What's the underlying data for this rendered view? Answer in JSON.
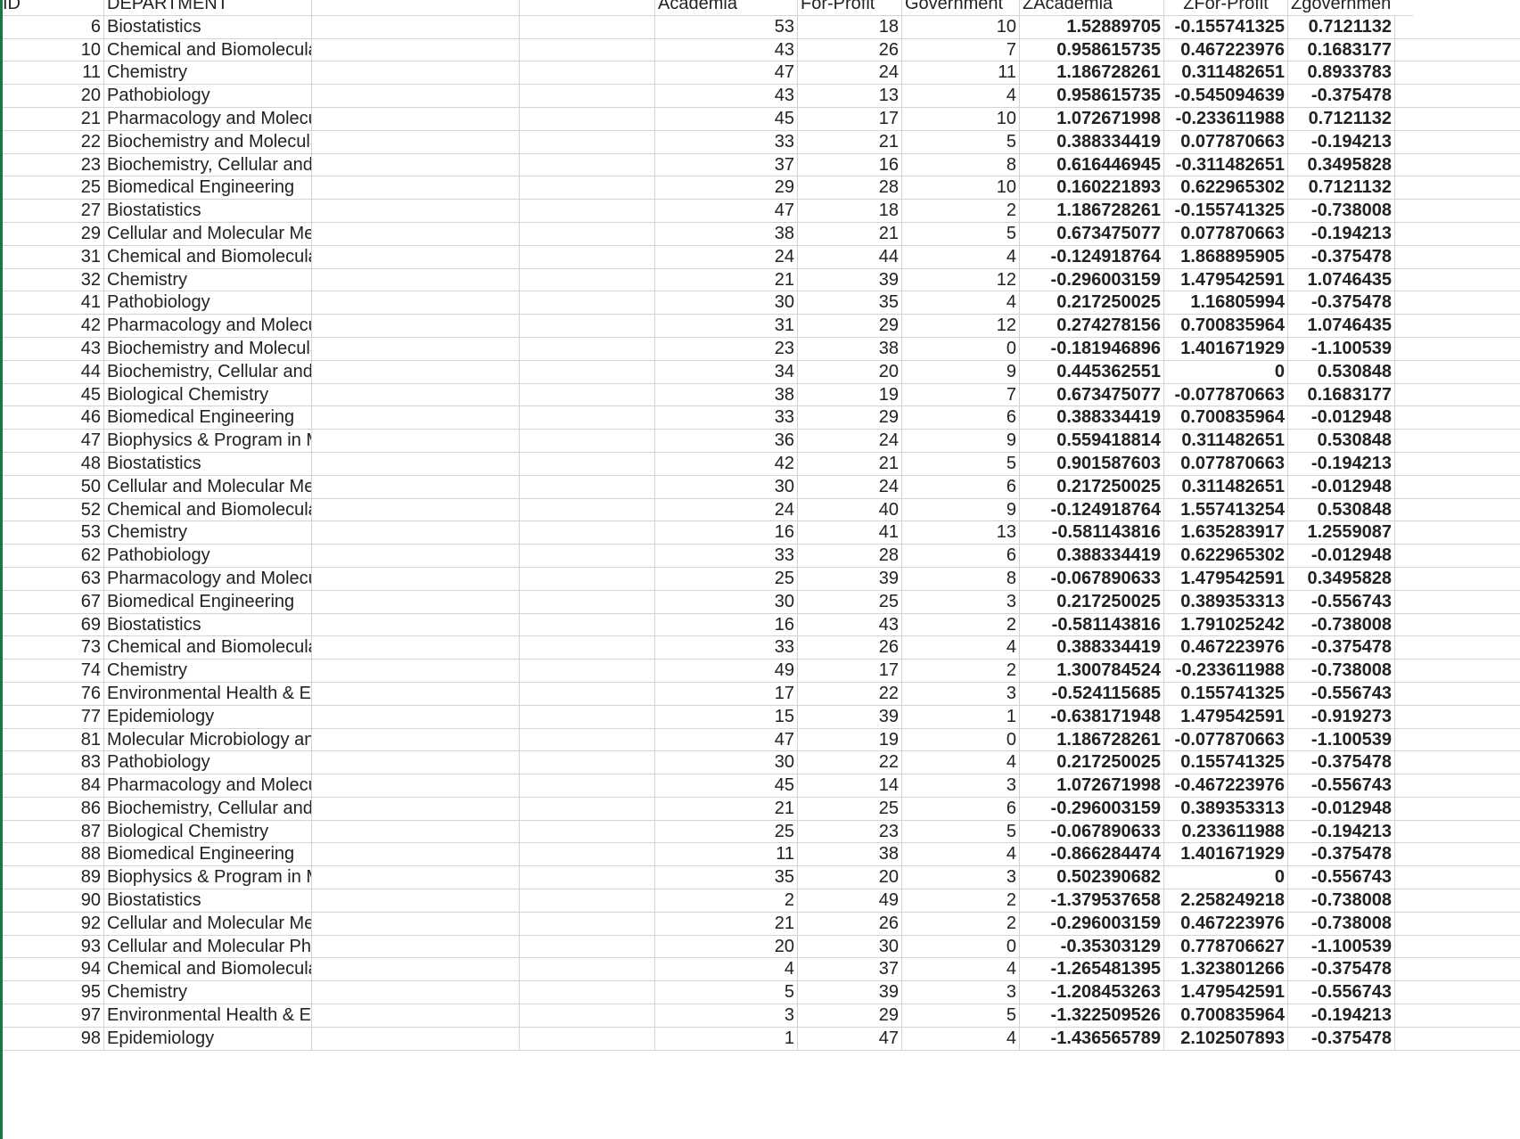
{
  "headers": {
    "id": "ID",
    "department": "DEPARTMENT",
    "academia": "Academia",
    "for_profit": "For-Profit",
    "government": "Government",
    "z_academia": "ZAcademia",
    "z_for_profit": "ZFor-Profit",
    "z_government": "Zgovernmen"
  },
  "rows": [
    {
      "id": "6",
      "dept": "Biostatistics",
      "ac": "53",
      "fp": "18",
      "gov": "10",
      "za": "1.52889705",
      "zf": "-0.155741325",
      "zg": "0.7121132"
    },
    {
      "id": "10",
      "dept": "Chemical and Biomolecular Engineering",
      "ac": "43",
      "fp": "26",
      "gov": "7",
      "za": "0.958615735",
      "zf": "0.467223976",
      "zg": "0.1683177"
    },
    {
      "id": "11",
      "dept": "Chemistry",
      "ac": "47",
      "fp": "24",
      "gov": "11",
      "za": "1.186728261",
      "zf": "0.311482651",
      "zg": "0.8933783"
    },
    {
      "id": "20",
      "dept": "Pathobiology",
      "ac": "43",
      "fp": "13",
      "gov": "4",
      "za": "0.958615735",
      "zf": "-0.545094639",
      "zg": "-0.375478"
    },
    {
      "id": "21",
      "dept": "Pharmacology and Molecular Sciences",
      "ac": "45",
      "fp": "17",
      "gov": "10",
      "za": "1.072671998",
      "zf": "-0.233611988",
      "zg": "0.7121132"
    },
    {
      "id": "22",
      "dept": "Biochemistry and Molecular Biology",
      "ac": "33",
      "fp": "21",
      "gov": "5",
      "za": "0.388334419",
      "zf": "0.077870663",
      "zg": "-0.194213"
    },
    {
      "id": "23",
      "dept": "Biochemistry, Cellular and Molecular Biology",
      "ac": "37",
      "fp": "16",
      "gov": "8",
      "za": "0.616446945",
      "zf": "-0.311482651",
      "zg": "0.3495828"
    },
    {
      "id": "25",
      "dept": "Biomedical Engineering",
      "ac": "29",
      "fp": "28",
      "gov": "10",
      "za": "0.160221893",
      "zf": "0.622965302",
      "zg": "0.7121132"
    },
    {
      "id": "27",
      "dept": "Biostatistics",
      "ac": "47",
      "fp": "18",
      "gov": "2",
      "za": "1.186728261",
      "zf": "-0.155741325",
      "zg": "-0.738008"
    },
    {
      "id": "29",
      "dept": "Cellular and Molecular Medicine",
      "ac": "38",
      "fp": "21",
      "gov": "5",
      "za": "0.673475077",
      "zf": "0.077870663",
      "zg": "-0.194213"
    },
    {
      "id": "31",
      "dept": "Chemical and Biomolecular Engineering",
      "ac": "24",
      "fp": "44",
      "gov": "4",
      "za": "-0.124918764",
      "zf": "1.868895905",
      "zg": "-0.375478"
    },
    {
      "id": "32",
      "dept": "Chemistry",
      "ac": "21",
      "fp": "39",
      "gov": "12",
      "za": "-0.296003159",
      "zf": "1.479542591",
      "zg": "1.0746435"
    },
    {
      "id": "41",
      "dept": "Pathobiology",
      "ac": "30",
      "fp": "35",
      "gov": "4",
      "za": "0.217250025",
      "zf": "1.16805994",
      "zg": "-0.375478"
    },
    {
      "id": "42",
      "dept": "Pharmacology and Molecular Sciences",
      "ac": "31",
      "fp": "29",
      "gov": "12",
      "za": "0.274278156",
      "zf": "0.700835964",
      "zg": "1.0746435"
    },
    {
      "id": "43",
      "dept": "Biochemistry and Molecular Biology",
      "ac": "23",
      "fp": "38",
      "gov": "0",
      "za": "-0.181946896",
      "zf": "1.401671929",
      "zg": "-1.100539"
    },
    {
      "id": "44",
      "dept": "Biochemistry, Cellular and Molecular Biology",
      "ac": "34",
      "fp": "20",
      "gov": "9",
      "za": "0.445362551",
      "zf": "0",
      "zg": "0.530848"
    },
    {
      "id": "45",
      "dept": "Biological Chemistry",
      "ac": "38",
      "fp": "19",
      "gov": "7",
      "za": "0.673475077",
      "zf": "-0.077870663",
      "zg": "0.1683177"
    },
    {
      "id": "46",
      "dept": "Biomedical Engineering",
      "ac": "33",
      "fp": "29",
      "gov": "6",
      "za": "0.388334419",
      "zf": "0.700835964",
      "zg": "-0.012948"
    },
    {
      "id": "47",
      "dept": "Biophysics & Program in Molecular Biophysics",
      "ac": "36",
      "fp": "24",
      "gov": "9",
      "za": "0.559418814",
      "zf": "0.311482651",
      "zg": "0.530848"
    },
    {
      "id": "48",
      "dept": "Biostatistics",
      "ac": "42",
      "fp": "21",
      "gov": "5",
      "za": "0.901587603",
      "zf": "0.077870663",
      "zg": "-0.194213"
    },
    {
      "id": "50",
      "dept": "Cellular and Molecular Medicine",
      "ac": "30",
      "fp": "24",
      "gov": "6",
      "za": "0.217250025",
      "zf": "0.311482651",
      "zg": "-0.012948"
    },
    {
      "id": "52",
      "dept": "Chemical and Biomolecular Engineering",
      "ac": "24",
      "fp": "40",
      "gov": "9",
      "za": "-0.124918764",
      "zf": "1.557413254",
      "zg": "0.530848"
    },
    {
      "id": "53",
      "dept": "Chemistry",
      "ac": "16",
      "fp": "41",
      "gov": "13",
      "za": "-0.581143816",
      "zf": "1.635283917",
      "zg": "1.2559087"
    },
    {
      "id": "62",
      "dept": "Pathobiology",
      "ac": "33",
      "fp": "28",
      "gov": "6",
      "za": "0.388334419",
      "zf": "0.622965302",
      "zg": "-0.012948"
    },
    {
      "id": "63",
      "dept": "Pharmacology and Molecular Sciences",
      "ac": "25",
      "fp": "39",
      "gov": "8",
      "za": "-0.067890633",
      "zf": "1.479542591",
      "zg": "0.3495828"
    },
    {
      "id": "67",
      "dept": "Biomedical Engineering",
      "ac": "30",
      "fp": "25",
      "gov": "3",
      "za": "0.217250025",
      "zf": "0.389353313",
      "zg": "-0.556743"
    },
    {
      "id": "69",
      "dept": "Biostatistics",
      "ac": "16",
      "fp": "43",
      "gov": "2",
      "za": "-0.581143816",
      "zf": "1.791025242",
      "zg": "-0.738008"
    },
    {
      "id": "73",
      "dept": "Chemical and Biomolecular Engineering",
      "ac": "33",
      "fp": "26",
      "gov": "4",
      "za": "0.388334419",
      "zf": "0.467223976",
      "zg": "-0.375478"
    },
    {
      "id": "74",
      "dept": "Chemistry",
      "ac": "49",
      "fp": "17",
      "gov": "2",
      "za": "1.300784524",
      "zf": "-0.233611988",
      "zg": "-0.738008"
    },
    {
      "id": "76",
      "dept": "Environmental Health & Engineering",
      "ac": "17",
      "fp": "22",
      "gov": "3",
      "za": "-0.524115685",
      "zf": "0.155741325",
      "zg": "-0.556743"
    },
    {
      "id": "77",
      "dept": "Epidemiology",
      "ac": "15",
      "fp": "39",
      "gov": "1",
      "za": "-0.638171948",
      "zf": "1.479542591",
      "zg": "-0.919273"
    },
    {
      "id": "81",
      "dept": "Molecular Microbiology and Immunology",
      "ac": "47",
      "fp": "19",
      "gov": "0",
      "za": "1.186728261",
      "zf": "-0.077870663",
      "zg": "-1.100539"
    },
    {
      "id": "83",
      "dept": "Pathobiology",
      "ac": "30",
      "fp": "22",
      "gov": "4",
      "za": "0.217250025",
      "zf": "0.155741325",
      "zg": "-0.375478"
    },
    {
      "id": "84",
      "dept": "Pharmacology and Molecular Sciences",
      "ac": "45",
      "fp": "14",
      "gov": "3",
      "za": "1.072671998",
      "zf": "-0.467223976",
      "zg": "-0.556743"
    },
    {
      "id": "86",
      "dept": "Biochemistry, Cellular and Molecular Biology",
      "ac": "21",
      "fp": "25",
      "gov": "6",
      "za": "-0.296003159",
      "zf": "0.389353313",
      "zg": "-0.012948"
    },
    {
      "id": "87",
      "dept": "Biological Chemistry",
      "ac": "25",
      "fp": "23",
      "gov": "5",
      "za": "-0.067890633",
      "zf": "0.233611988",
      "zg": "-0.194213"
    },
    {
      "id": "88",
      "dept": "Biomedical Engineering",
      "ac": "11",
      "fp": "38",
      "gov": "4",
      "za": "-0.866284474",
      "zf": "1.401671929",
      "zg": "-0.375478"
    },
    {
      "id": "89",
      "dept": "Biophysics & Program in Molecular Biophysics",
      "ac": "35",
      "fp": "20",
      "gov": "3",
      "za": "0.502390682",
      "zf": "0",
      "zg": "-0.556743"
    },
    {
      "id": "90",
      "dept": "Biostatistics",
      "ac": "2",
      "fp": "49",
      "gov": "2",
      "za": "-1.379537658",
      "zf": "2.258249218",
      "zg": "-0.738008"
    },
    {
      "id": "92",
      "dept": "Cellular and Molecular Medicine",
      "ac": "21",
      "fp": "26",
      "gov": "2",
      "za": "-0.296003159",
      "zf": "0.467223976",
      "zg": "-0.738008"
    },
    {
      "id": "93",
      "dept": "Cellular and Molecular Physiology",
      "ac": "20",
      "fp": "30",
      "gov": "0",
      "za": "-0.35303129",
      "zf": "0.778706627",
      "zg": "-1.100539"
    },
    {
      "id": "94",
      "dept": "Chemical and Biomolecular Engineering",
      "ac": "4",
      "fp": "37",
      "gov": "4",
      "za": "-1.265481395",
      "zf": "1.323801266",
      "zg": "-0.375478"
    },
    {
      "id": "95",
      "dept": "Chemistry",
      "ac": "5",
      "fp": "39",
      "gov": "3",
      "za": "-1.208453263",
      "zf": "1.479542591",
      "zg": "-0.556743"
    },
    {
      "id": "97",
      "dept": "Environmental Health & Engineering",
      "ac": "3",
      "fp": "29",
      "gov": "5",
      "za": "-1.322509526",
      "zf": "0.700835964",
      "zg": "-0.194213"
    },
    {
      "id": "98",
      "dept": "Epidemiology",
      "ac": "1",
      "fp": "47",
      "gov": "4",
      "za": "-1.436565789",
      "zf": "2.102507893",
      "zg": "-0.375478"
    }
  ]
}
